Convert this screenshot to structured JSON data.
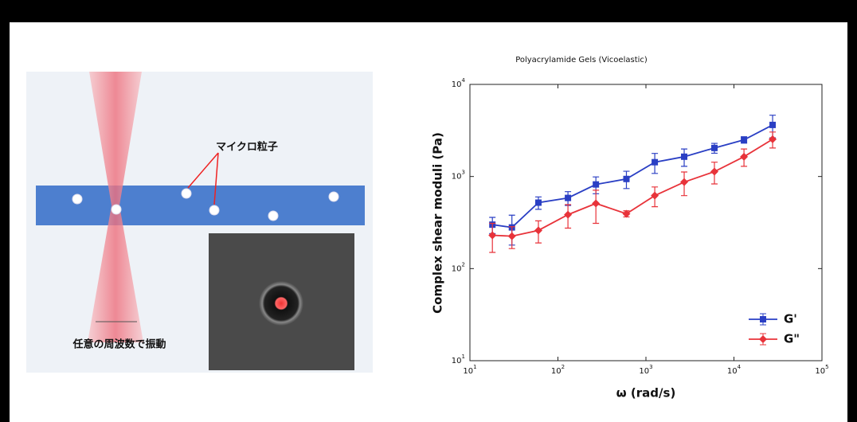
{
  "diagram": {
    "particle_label": "マイクロ粒子",
    "oscillation_label": "任意の周波数で振動"
  },
  "chart_data": {
    "type": "line",
    "title": "Polyacrylamide Gels (Vicoelastic)",
    "x_label": "ω (rad/s)",
    "y_label": "Complex shear moduli (Pa)",
    "xscale": "log",
    "yscale": "log",
    "xlim": [
      10,
      100000
    ],
    "ylim": [
      10,
      10000
    ],
    "xticks": [
      {
        "value": 10,
        "label": "10^1"
      },
      {
        "value": 100,
        "label": "10^2"
      },
      {
        "value": 1000,
        "label": "10^3"
      },
      {
        "value": 10000,
        "label": "10^4"
      },
      {
        "value": 100000,
        "label": "10^5"
      }
    ],
    "yticks": [
      {
        "value": 10,
        "label": "10^1"
      },
      {
        "value": 100,
        "label": "10^2"
      },
      {
        "value": 1000,
        "label": "10^3"
      },
      {
        "value": 10000,
        "label": "10^4"
      }
    ],
    "x": [
      18,
      30,
      60,
      130,
      270,
      600,
      1260,
      2720,
      6000,
      13000,
      27500
    ],
    "series": [
      {
        "name": "G'",
        "color": "#2a3fc4",
        "marker": "square",
        "values": [
          300,
          280,
          520,
          585,
          820,
          940,
          1430,
          1640,
          2040,
          2500,
          3630
        ],
        "errors": [
          60,
          100,
          80,
          100,
          170,
          200,
          350,
          350,
          250,
          200,
          1000
        ]
      },
      {
        "name": "G\"",
        "color": "#e8333a",
        "marker": "diamond",
        "values": [
          230,
          225,
          260,
          385,
          510,
          394,
          620,
          870,
          1130,
          1640,
          2540
        ],
        "errors": [
          80,
          60,
          70,
          110,
          200,
          30,
          150,
          250,
          300,
          350,
          500
        ]
      }
    ],
    "legend": "lower right",
    "grid": false
  }
}
